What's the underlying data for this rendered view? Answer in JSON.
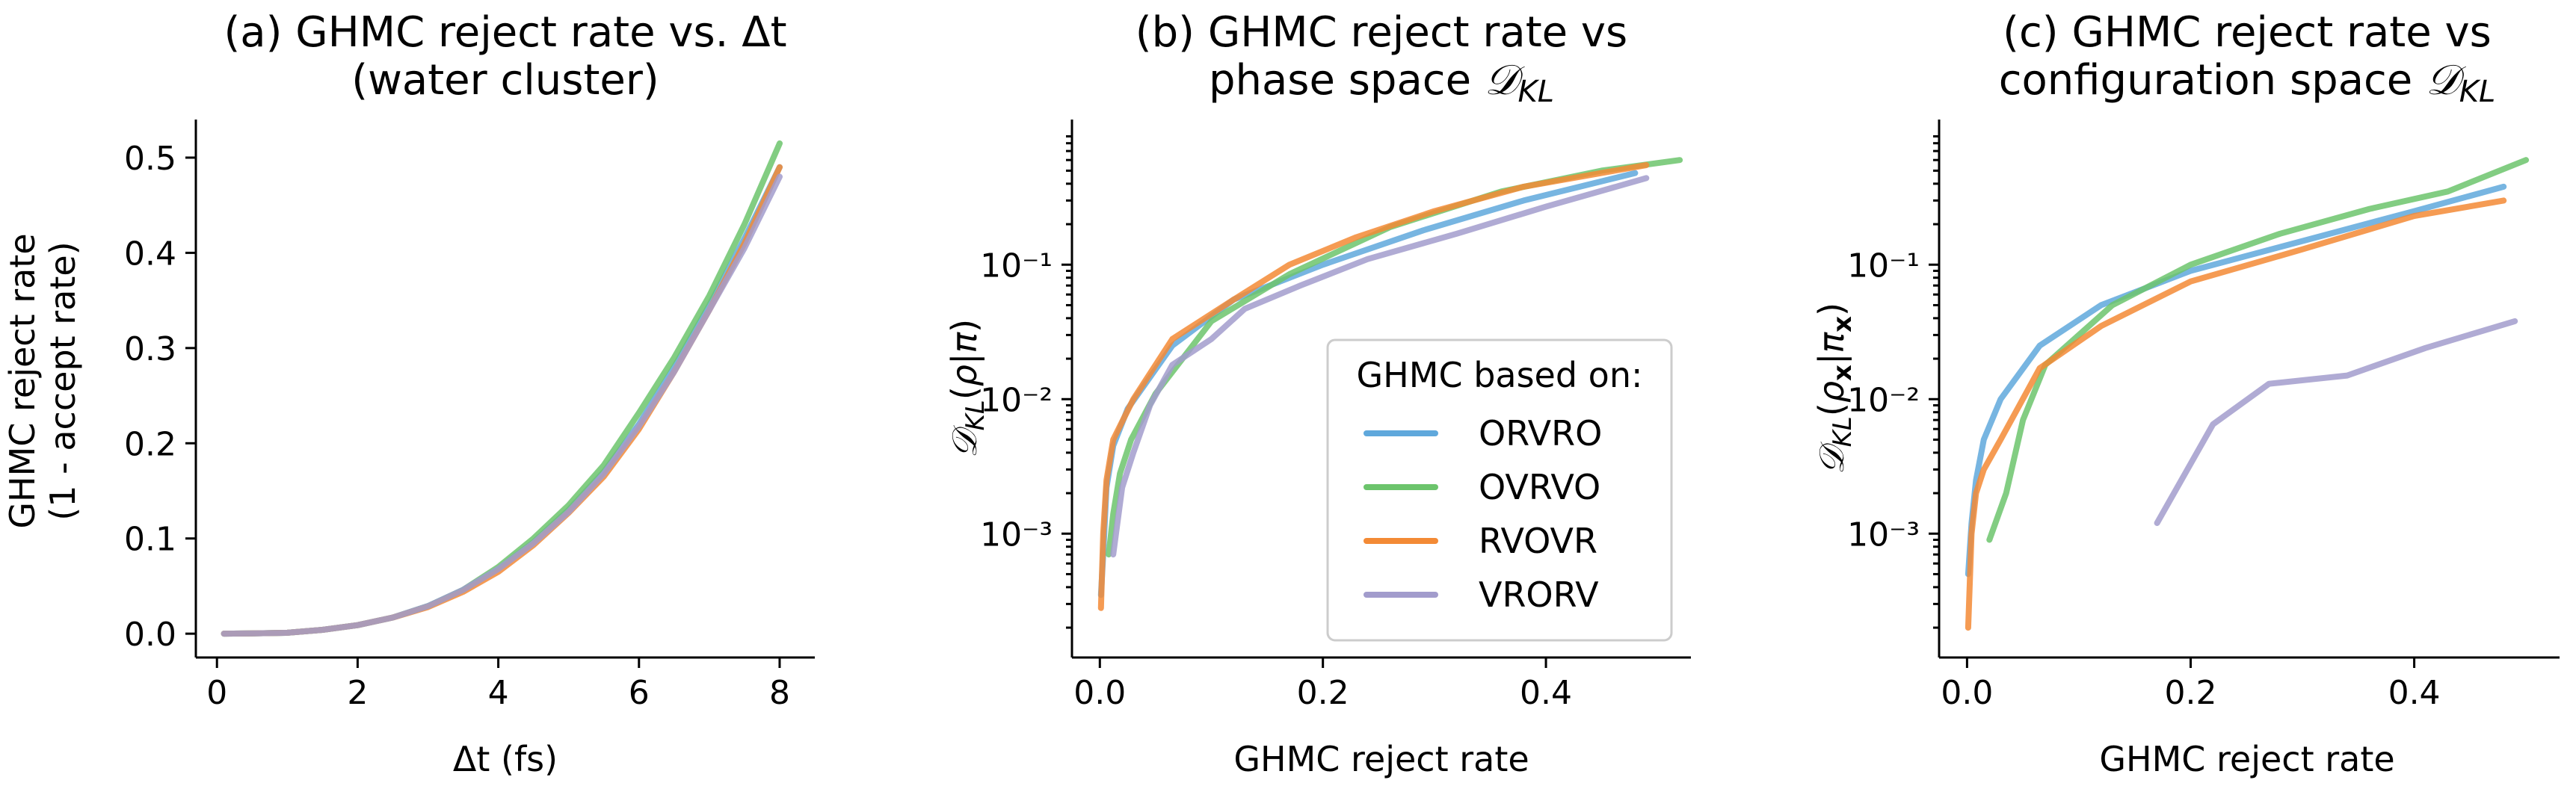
{
  "chart_data": [
    {
      "type": "line",
      "title_lines": [
        "(a) GHMC reject rate vs. Δt",
        "(water cluster)"
      ],
      "xlabel": "Δt (fs)",
      "ylabel_lines": [
        "GHMC reject rate",
        "(1 - accept rate)"
      ],
      "xlim": [
        -0.3,
        8.5
      ],
      "ylim": [
        -0.025,
        0.54
      ],
      "yscale": "linear",
      "xticks": [
        0,
        2,
        4,
        6,
        8
      ],
      "yticks": [
        0.0,
        0.1,
        0.2,
        0.3,
        0.4,
        0.5
      ],
      "xtick_labels": [
        "0",
        "2",
        "4",
        "6",
        "8"
      ],
      "ytick_labels": [
        "0.0",
        "0.1",
        "0.2",
        "0.3",
        "0.4",
        "0.5"
      ],
      "series": [
        {
          "name": "ORVRO",
          "color": "#5fa8dc",
          "x": [
            0.1,
            0.5,
            1.0,
            1.5,
            2.0,
            2.5,
            3.0,
            3.5,
            4.0,
            4.5,
            5.0,
            5.5,
            6.0,
            6.5,
            7.0,
            7.5,
            8.0
          ],
          "y": [
            0.0,
            0.0003,
            0.001,
            0.004,
            0.009,
            0.017,
            0.029,
            0.046,
            0.068,
            0.096,
            0.13,
            0.17,
            0.22,
            0.28,
            0.345,
            0.415,
            0.49
          ]
        },
        {
          "name": "OVRVO",
          "color": "#6cc46c",
          "x": [
            0.1,
            0.5,
            1.0,
            1.5,
            2.0,
            2.5,
            3.0,
            3.5,
            4.0,
            4.5,
            5.0,
            5.5,
            6.0,
            6.5,
            7.0,
            7.5,
            8.0
          ],
          "y": [
            0.0,
            0.0003,
            0.001,
            0.004,
            0.009,
            0.017,
            0.029,
            0.046,
            0.07,
            0.1,
            0.135,
            0.177,
            0.232,
            0.29,
            0.355,
            0.43,
            0.515
          ]
        },
        {
          "name": "RVOVR",
          "color": "#f38a35",
          "x": [
            0.1,
            0.5,
            1.0,
            1.5,
            2.0,
            2.5,
            3.0,
            3.5,
            4.0,
            4.5,
            5.0,
            5.5,
            6.0,
            6.5,
            7.0,
            7.5,
            8.0
          ],
          "y": [
            0.0,
            0.0003,
            0.001,
            0.004,
            0.009,
            0.017,
            0.028,
            0.044,
            0.065,
            0.093,
            0.127,
            0.165,
            0.215,
            0.275,
            0.34,
            0.41,
            0.49
          ]
        },
        {
          "name": "VRORV",
          "color": "#a29ccc",
          "x": [
            0.1,
            0.5,
            1.0,
            1.5,
            2.0,
            2.5,
            3.0,
            3.5,
            4.0,
            4.5,
            5.0,
            5.5,
            6.0,
            6.5,
            7.0,
            7.5,
            8.0
          ],
          "y": [
            0.0,
            0.0003,
            0.001,
            0.004,
            0.009,
            0.017,
            0.029,
            0.046,
            0.068,
            0.095,
            0.128,
            0.168,
            0.218,
            0.275,
            0.34,
            0.405,
            0.48
          ]
        }
      ]
    },
    {
      "type": "line",
      "title_lines": [
        "(b) GHMC reject rate vs",
        "phase space 𝒟KL"
      ],
      "xlabel": "GHMC reject rate",
      "ylabel": "𝒟KL(ρ|π)",
      "xlim": [
        -0.025,
        0.53
      ],
      "ylim": [
        0.00012,
        1.2
      ],
      "yscale": "log",
      "xticks": [
        0.0,
        0.2,
        0.4
      ],
      "xtick_labels": [
        "0.0",
        "0.2",
        "0.4"
      ],
      "yticks": [
        0.001,
        0.01,
        0.1
      ],
      "ytick_labels": [
        "10⁻³",
        "10⁻²",
        "10⁻¹"
      ],
      "legend": {
        "title": "GHMC based on:",
        "location": "lower-right",
        "entries": [
          "ORVRO",
          "OVRVO",
          "RVOVR",
          "VRORV"
        ]
      },
      "series": [
        {
          "name": "ORVRO",
          "color": "#5fa8dc",
          "x": [
            0.001,
            0.003,
            0.006,
            0.012,
            0.025,
            0.065,
            0.12,
            0.2,
            0.29,
            0.38,
            0.48
          ],
          "y": [
            0.00035,
            0.0007,
            0.0022,
            0.0045,
            0.0085,
            0.025,
            0.055,
            0.1,
            0.18,
            0.3,
            0.48
          ]
        },
        {
          "name": "OVRVO",
          "color": "#6cc46c",
          "x": [
            0.008,
            0.012,
            0.018,
            0.028,
            0.05,
            0.1,
            0.17,
            0.26,
            0.36,
            0.45,
            0.52
          ],
          "y": [
            0.0007,
            0.0014,
            0.0028,
            0.005,
            0.011,
            0.038,
            0.085,
            0.19,
            0.35,
            0.5,
            0.6
          ]
        },
        {
          "name": "RVOVR",
          "color": "#f38a35",
          "x": [
            0.001,
            0.003,
            0.006,
            0.012,
            0.03,
            0.065,
            0.12,
            0.17,
            0.23,
            0.3,
            0.38,
            0.49
          ],
          "y": [
            0.00028,
            0.001,
            0.0025,
            0.005,
            0.01,
            0.028,
            0.055,
            0.1,
            0.16,
            0.25,
            0.38,
            0.55
          ]
        },
        {
          "name": "VRORV",
          "color": "#a29ccc",
          "x": [
            0.012,
            0.02,
            0.03,
            0.045,
            0.065,
            0.1,
            0.13,
            0.18,
            0.24,
            0.32,
            0.4,
            0.49
          ],
          "y": [
            0.0007,
            0.0022,
            0.004,
            0.009,
            0.018,
            0.028,
            0.047,
            0.07,
            0.11,
            0.17,
            0.27,
            0.44
          ]
        }
      ]
    },
    {
      "type": "line",
      "title_lines": [
        "(c) GHMC reject rate vs",
        "configuration space 𝒟KL"
      ],
      "xlabel": "GHMC reject rate",
      "ylabel": "𝒟KL(ρx|πx)",
      "xlim": [
        -0.025,
        0.53
      ],
      "ylim": [
        0.00012,
        1.2
      ],
      "yscale": "log",
      "xticks": [
        0.0,
        0.2,
        0.4
      ],
      "xtick_labels": [
        "0.0",
        "0.2",
        "0.4"
      ],
      "yticks": [
        0.001,
        0.01,
        0.1
      ],
      "ytick_labels": [
        "10⁻³",
        "10⁻²",
        "10⁻¹"
      ],
      "series": [
        {
          "name": "ORVRO",
          "color": "#5fa8dc",
          "x": [
            0.001,
            0.004,
            0.008,
            0.015,
            0.03,
            0.065,
            0.12,
            0.2,
            0.3,
            0.4,
            0.48
          ],
          "y": [
            0.0005,
            0.0012,
            0.0025,
            0.005,
            0.01,
            0.025,
            0.05,
            0.09,
            0.15,
            0.25,
            0.38
          ]
        },
        {
          "name": "OVRVO",
          "color": "#6cc46c",
          "x": [
            0.02,
            0.035,
            0.05,
            0.07,
            0.1,
            0.13,
            0.2,
            0.28,
            0.36,
            0.43,
            0.5
          ],
          "y": [
            0.0009,
            0.002,
            0.007,
            0.018,
            0.03,
            0.05,
            0.1,
            0.17,
            0.26,
            0.35,
            0.6
          ]
        },
        {
          "name": "RVOVR",
          "color": "#f38a35",
          "x": [
            0.001,
            0.004,
            0.008,
            0.015,
            0.03,
            0.065,
            0.12,
            0.2,
            0.3,
            0.4,
            0.48
          ],
          "y": [
            0.0002,
            0.001,
            0.002,
            0.003,
            0.005,
            0.017,
            0.035,
            0.075,
            0.13,
            0.23,
            0.3
          ]
        },
        {
          "name": "VRORV",
          "color": "#a29ccc",
          "x": [
            0.17,
            0.22,
            0.27,
            0.34,
            0.41,
            0.49
          ],
          "y": [
            0.0012,
            0.0065,
            0.013,
            0.015,
            0.024,
            0.038
          ]
        }
      ]
    }
  ]
}
